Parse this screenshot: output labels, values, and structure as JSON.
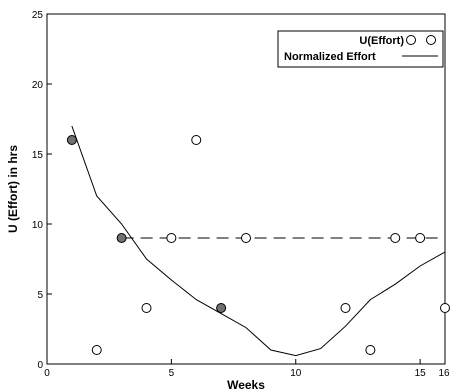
{
  "chart_data": {
    "type": "scatter",
    "title": "",
    "xlabel": "Weeks",
    "ylabel": "U (Effort) in hrs",
    "xlim": [
      0,
      16
    ],
    "ylim": [
      0,
      25
    ],
    "x_ticks": [
      "0",
      "5",
      "10",
      "15",
      "16"
    ],
    "y_ticks": [
      "0",
      "5",
      "10",
      "15",
      "20",
      "25"
    ],
    "grid": false,
    "legend_position": "top-right",
    "legend": {
      "scatter_label": "U(Effort)",
      "line_label": "Normalized Effort"
    },
    "series": [
      {
        "kind": "scatter",
        "points": [
          {
            "x": 1,
            "y": 16,
            "filled": true
          },
          {
            "x": 2,
            "y": 1,
            "filled": false
          },
          {
            "x": 3,
            "y": 9,
            "filled": true
          },
          {
            "x": 4,
            "y": 4,
            "filled": false
          },
          {
            "x": 5,
            "y": 9,
            "filled": false
          },
          {
            "x": 6,
            "y": 16,
            "filled": false
          },
          {
            "x": 7,
            "y": 4,
            "filled": true
          },
          {
            "x": 8,
            "y": 9,
            "filled": false
          },
          {
            "x": 12,
            "y": 4,
            "filled": false
          },
          {
            "x": 13,
            "y": 1,
            "filled": false
          },
          {
            "x": 14,
            "y": 9,
            "filled": false
          },
          {
            "x": 15,
            "y": 9,
            "filled": false
          },
          {
            "x": 16,
            "y": 4,
            "filled": false
          }
        ],
        "color_filled": "#707070",
        "color_empty": "#ffffff"
      },
      {
        "kind": "line",
        "x": [
          1,
          2,
          3,
          4,
          5,
          6,
          7,
          8,
          9,
          10,
          11,
          12,
          13,
          14,
          15,
          16
        ],
        "y": [
          17,
          12,
          10,
          7.5,
          6,
          4.6,
          3.6,
          2.6,
          1,
          0.6,
          1.1,
          2.7,
          4.6,
          5.7,
          7,
          8
        ],
        "color": "#000000"
      },
      {
        "kind": "dashed-line",
        "x": [
          3,
          16
        ],
        "y": [
          9,
          9
        ],
        "color": "#000000"
      }
    ]
  }
}
